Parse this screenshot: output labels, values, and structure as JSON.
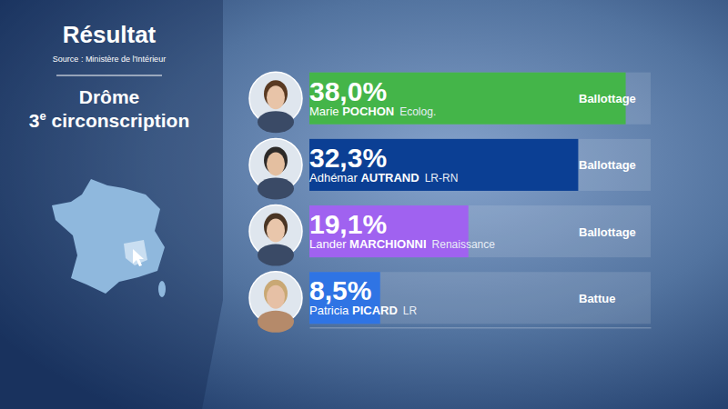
{
  "chart_data": {
    "type": "bar",
    "orientation": "horizontal",
    "title": "Résultat",
    "source": "Source : Ministère de l'Intérieur",
    "subtitle": [
      "Drôme",
      "3e circonscription"
    ],
    "categories": [
      "Marie POCHON",
      "Adhémar AUTRAND",
      "Lander MARCHIONNI",
      "Patricia PICARD"
    ],
    "parties": [
      "Ecolog.",
      "LR-RN",
      "Renaissance",
      "LR"
    ],
    "statuses": [
      "Ballottage",
      "Ballottage",
      "Ballottage",
      "Battue"
    ],
    "values": [
      38.0,
      32.3,
      19.1,
      8.5
    ],
    "value_labels": [
      "38,0%",
      "32,3%",
      "19,1%",
      "8,5%"
    ],
    "colors": [
      "#44b549",
      "#0b3f94",
      "#a062f0",
      "#2f74e4"
    ],
    "xlim": [
      0,
      41
    ],
    "xticks": [],
    "tick_labels": false,
    "grid": false,
    "data_labels": true
  }
}
